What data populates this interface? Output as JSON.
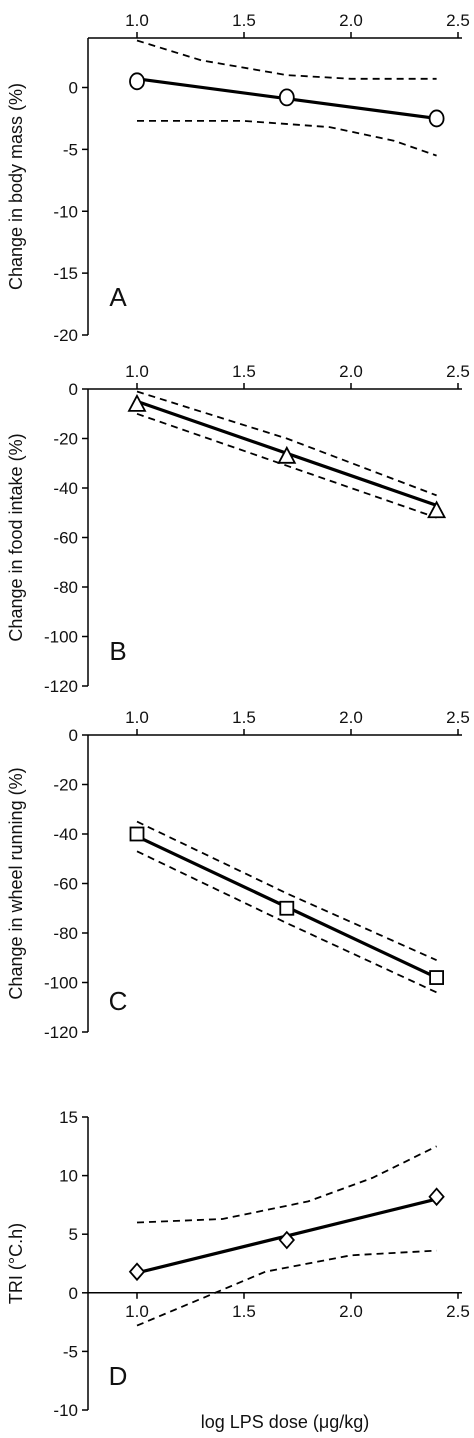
{
  "chart_data": [
    {
      "type": "line",
      "panel_label": "A",
      "ylabel": "Change in body mass (%)",
      "xlabel": "",
      "xlim": [
        1.0,
        2.5
      ],
      "ylim": [
        -20,
        4
      ],
      "x_ticks": [
        "1.0",
        "1.5",
        "2.0",
        "2.5"
      ],
      "y_ticks": [
        0,
        -5,
        -10,
        -15,
        -20
      ],
      "x_axis_position": "top",
      "marker": "circle",
      "x": [
        1.0,
        1.7,
        2.4
      ],
      "values": [
        0.5,
        -0.8,
        -2.5
      ],
      "fit_line": [
        [
          1.0,
          0.7
        ],
        [
          2.4,
          -2.5
        ]
      ],
      "ci_upper": [
        [
          1.0,
          3.8
        ],
        [
          1.3,
          2.2
        ],
        [
          1.7,
          1.0
        ],
        [
          2.0,
          0.7
        ],
        [
          2.4,
          0.7
        ]
      ],
      "ci_lower": [
        [
          1.0,
          -2.7
        ],
        [
          1.5,
          -2.7
        ],
        [
          1.9,
          -3.2
        ],
        [
          2.2,
          -4.3
        ],
        [
          2.4,
          -5.5
        ]
      ]
    },
    {
      "type": "line",
      "panel_label": "B",
      "ylabel": "Change in food intake (%)",
      "xlabel": "",
      "xlim": [
        1.0,
        2.5
      ],
      "ylim": [
        -120,
        0
      ],
      "x_ticks": [
        "1.0",
        "1.5",
        "2.0",
        "2.5"
      ],
      "y_ticks": [
        0,
        -20,
        -40,
        -60,
        -80,
        -100,
        -120
      ],
      "x_axis_position": "top",
      "marker": "triangle",
      "x": [
        1.0,
        1.7,
        2.4
      ],
      "values": [
        -6,
        -27,
        -49
      ],
      "fit_line": [
        [
          1.0,
          -5
        ],
        [
          2.4,
          -47
        ]
      ],
      "ci_upper": [
        [
          1.0,
          -1
        ],
        [
          1.7,
          -20
        ],
        [
          2.4,
          -43
        ]
      ],
      "ci_lower": [
        [
          1.0,
          -10
        ],
        [
          1.7,
          -31
        ],
        [
          2.4,
          -52
        ]
      ]
    },
    {
      "type": "line",
      "panel_label": "C",
      "ylabel": "Change in wheel running (%)",
      "xlabel": "",
      "xlim": [
        1.0,
        2.5
      ],
      "ylim": [
        -120,
        0
      ],
      "x_ticks": [
        "1.0",
        "1.5",
        "2.0",
        "2.5"
      ],
      "y_ticks": [
        0,
        -20,
        -40,
        -60,
        -80,
        -100,
        -120
      ],
      "x_axis_position": "top",
      "marker": "square",
      "x": [
        1.0,
        1.7,
        2.4
      ],
      "values": [
        -40,
        -70,
        -98
      ],
      "fit_line": [
        [
          1.0,
          -41
        ],
        [
          2.4,
          -98
        ]
      ],
      "ci_upper": [
        [
          1.0,
          -35
        ],
        [
          1.7,
          -64
        ],
        [
          2.4,
          -91
        ]
      ],
      "ci_lower": [
        [
          1.0,
          -47
        ],
        [
          1.7,
          -76
        ],
        [
          2.4,
          -104
        ]
      ]
    },
    {
      "type": "line",
      "panel_label": "D",
      "ylabel": "TRI (°C.h)",
      "xlabel": "log LPS dose (μg/kg)",
      "xlim": [
        1.0,
        2.5
      ],
      "ylim": [
        -10,
        15
      ],
      "x_ticks": [
        "1.0",
        "1.5",
        "2.0",
        "2.5"
      ],
      "y_ticks": [
        15,
        10,
        5,
        0,
        -5,
        -10
      ],
      "x_axis_position": "zero",
      "marker": "diamond",
      "x": [
        1.0,
        1.7,
        2.4
      ],
      "values": [
        1.8,
        4.5,
        8.2
      ],
      "fit_line": [
        [
          1.0,
          1.7
        ],
        [
          2.4,
          8.0
        ]
      ],
      "ci_upper": [
        [
          1.0,
          6.0
        ],
        [
          1.4,
          6.3
        ],
        [
          1.8,
          7.8
        ],
        [
          2.1,
          9.8
        ],
        [
          2.4,
          12.5
        ]
      ],
      "ci_lower": [
        [
          1.0,
          -2.8
        ],
        [
          1.3,
          -0.5
        ],
        [
          1.6,
          1.8
        ],
        [
          2.0,
          3.2
        ],
        [
          2.4,
          3.6
        ]
      ]
    }
  ]
}
